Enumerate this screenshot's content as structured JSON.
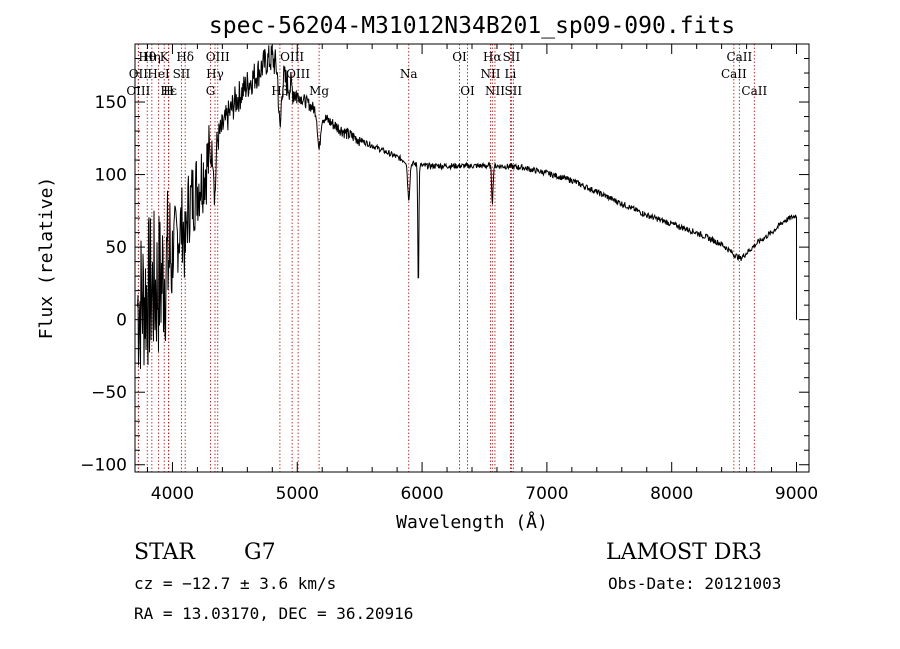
{
  "chart_data": {
    "type": "line",
    "title": "spec-56204-M31012N34B201_sp09-090.fits",
    "xlabel": "Wavelength (Å)",
    "ylabel": "Flux (relative)",
    "xlim": [
      3700,
      9100
    ],
    "ylim": [
      -105,
      190
    ],
    "xticks": [
      4000,
      5000,
      6000,
      7000,
      8000,
      9000
    ],
    "yticks": [
      -100,
      -50,
      0,
      50,
      100,
      150
    ],
    "ytick_labels": [
      "−100",
      "−50",
      "0",
      "50",
      "100",
      "150"
    ],
    "series": [
      {
        "name": "spectrum",
        "x": [
          3700,
          3800,
          3900,
          4000,
          4100,
          4200,
          4300,
          4400,
          4500,
          4600,
          4700,
          4750,
          4800,
          4850,
          4900,
          5000,
          5100,
          5200,
          5300,
          5400,
          5500,
          5600,
          5700,
          5800,
          5900,
          6000,
          6200,
          6400,
          6600,
          6800,
          7000,
          7200,
          7400,
          7600,
          7800,
          8000,
          8200,
          8400,
          8500,
          8550,
          8600,
          8700,
          8800,
          8900,
          9000
        ],
        "y": [
          8,
          18,
          25,
          48,
          72,
          92,
          112,
          132,
          150,
          162,
          172,
          178,
          180,
          172,
          165,
          155,
          148,
          140,
          134,
          128,
          124,
          120,
          116,
          112,
          108,
          106,
          106,
          106,
          106,
          105,
          101,
          96,
          88,
          80,
          72,
          66,
          60,
          52,
          45,
          42,
          46,
          54,
          60,
          68,
          72
        ]
      }
    ],
    "lines": [
      {
        "name": "Hθ",
        "wl": 3798,
        "row": 1
      },
      {
        "name": "OII",
        "wl": 3727,
        "row": 2
      },
      {
        "name": "OIII",
        "wl": 3727,
        "row": 3
      },
      {
        "name": "Hη",
        "wl": 3835,
        "row": 1
      },
      {
        "name": "HeI",
        "wl": 3889,
        "row": 2
      },
      {
        "name": "Hε",
        "wl": 3970,
        "row": 3
      },
      {
        "name": "K",
        "wl": 3934,
        "row": 1
      },
      {
        "name": "SII",
        "wl": 4072,
        "row": 2
      },
      {
        "name": "H",
        "wl": 3968,
        "row": 3
      },
      {
        "name": "Hδ",
        "wl": 4102,
        "row": 1
      },
      {
        "name": "OIII",
        "wl": 4363,
        "row": 1
      },
      {
        "name": "Hγ",
        "wl": 4341,
        "row": 2
      },
      {
        "name": "G",
        "wl": 4305,
        "row": 3
      },
      {
        "name": "OIII",
        "wl": 4959,
        "row": 1
      },
      {
        "name": "OIII",
        "wl": 5007,
        "row": 2
      },
      {
        "name": "Hβ",
        "wl": 4861,
        "row": 3
      },
      {
        "name": "Mg",
        "wl": 5175,
        "row": 3
      },
      {
        "name": "Na",
        "wl": 5893,
        "row": 2
      },
      {
        "name": "OI",
        "wl": 6300,
        "row": 1
      },
      {
        "name": "OI",
        "wl": 6364,
        "row": 3
      },
      {
        "name": "Hα",
        "wl": 6563,
        "row": 1
      },
      {
        "name": "NII",
        "wl": 6548,
        "row": 2
      },
      {
        "name": "NII",
        "wl": 6584,
        "row": 3
      },
      {
        "name": "SII",
        "wl": 6716,
        "row": 1
      },
      {
        "name": "Li",
        "wl": 6708,
        "row": 2
      },
      {
        "name": "SII",
        "wl": 6731,
        "row": 3
      },
      {
        "name": "CaII",
        "wl": 8542,
        "row": 1
      },
      {
        "name": "CaII",
        "wl": 8498,
        "row": 2
      },
      {
        "name": "CaII",
        "wl": 8662,
        "row": 3
      }
    ]
  },
  "info": {
    "star_class": "STAR",
    "subclass": "G7",
    "survey": "LAMOST DR3",
    "cz": "cz = −12.7 ± 3.6 km/s",
    "obs_date": "Obs-Date: 20121003",
    "coords": "RA =  13.03170, DEC =  36.20916"
  }
}
